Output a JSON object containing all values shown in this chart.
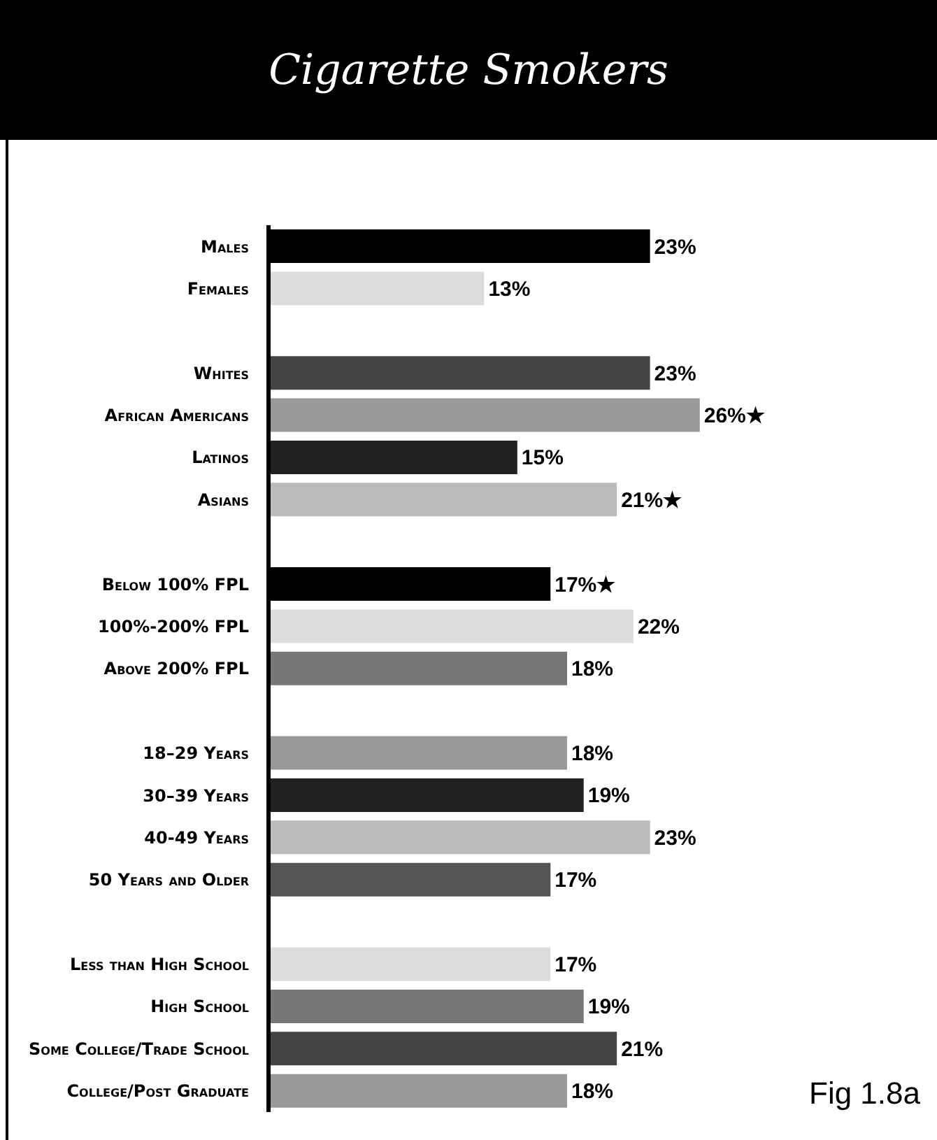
{
  "chart_data": {
    "type": "bar",
    "orientation": "horizontal",
    "title": "Cigarette Smokers",
    "categories": [
      "Males",
      "Females",
      null,
      "Whites",
      "African Americans",
      "Latinos",
      "Asians",
      null,
      "Below 100% FPL",
      "100%-200% FPL",
      "Above 200% FPL",
      null,
      "18–29 Years",
      "30–39 Years",
      "40-49 Years",
      "50 Years and Older",
      null,
      "Less than High School",
      "High School",
      "Some College/Trade School",
      "College/Post Graduate"
    ],
    "values": [
      23,
      13,
      null,
      23,
      26,
      15,
      21,
      null,
      17,
      22,
      18,
      null,
      18,
      19,
      23,
      17,
      null,
      17,
      19,
      21,
      18
    ],
    "colors": [
      "#000000",
      "#dddddd",
      null,
      "#444444",
      "#999999",
      "#222222",
      "#bbbbbb",
      null,
      "#000000",
      "#dddddd",
      "#777777",
      null,
      "#999999",
      "#222222",
      "#bbbbbb",
      "#555555",
      null,
      "#dddddd",
      "#777777",
      "#444444",
      "#999999"
    ],
    "value_labels": [
      "23%",
      "13%",
      null,
      "23%",
      "26%★",
      "15%",
      "21%★",
      null,
      "17%★",
      "22%",
      "18%",
      null,
      "18%",
      "19%",
      "23%",
      "17%",
      null,
      "17%",
      "19%",
      "21%",
      "18%"
    ],
    "annotations": [
      "Fig 1.8a"
    ],
    "grid": false,
    "legend": false
  }
}
